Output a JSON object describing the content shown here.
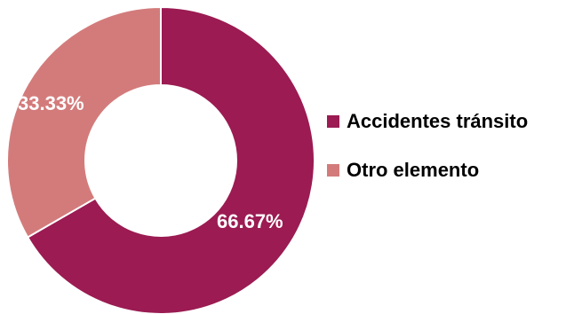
{
  "chart_data": {
    "type": "pie",
    "variant": "donut",
    "title": "",
    "categories": [
      "Accidentes tránsito",
      "Otro elemento"
    ],
    "values": [
      66.67,
      33.33
    ],
    "labels": [
      "66.67%",
      "33.33%"
    ],
    "colors": [
      "#9b1b52",
      "#d37b7b"
    ],
    "legend_position": "right"
  },
  "legend": {
    "items": [
      {
        "label": "Accidentes tránsito",
        "color": "#9b1b52"
      },
      {
        "label": "Otro elemento",
        "color": "#d37b7b"
      }
    ]
  }
}
